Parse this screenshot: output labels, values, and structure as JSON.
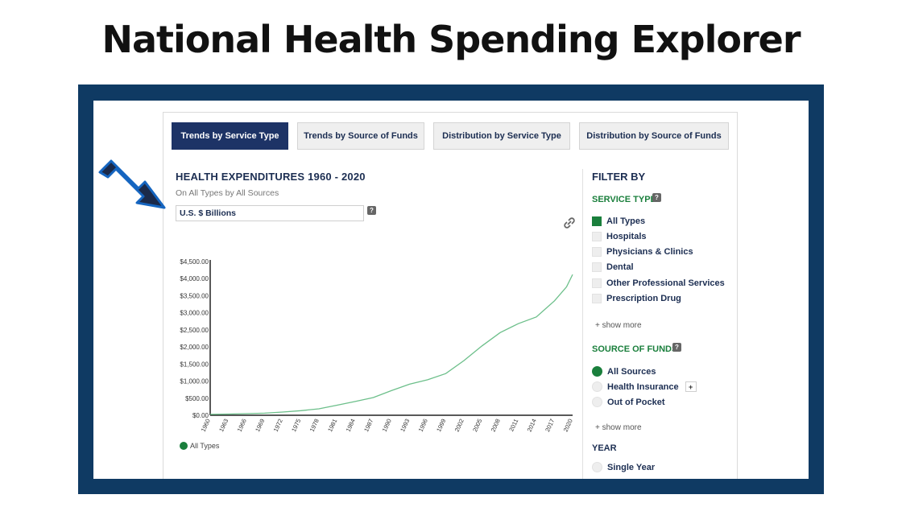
{
  "headline": "National Health Spending Explorer",
  "tabs": [
    {
      "label": "Trends by Service Type",
      "active": true
    },
    {
      "label": "Trends by Source of Funds",
      "active": false
    },
    {
      "label": "Distribution by Service Type",
      "active": false
    },
    {
      "label": "Distribution by Source of Funds",
      "active": false
    }
  ],
  "main": {
    "title": "HEALTH EXPENDITURES 1960 - 2020",
    "subtitle": "On All Types by All Sources",
    "units_value": "U.S. $ Billions",
    "help_label": "?"
  },
  "chart_data": {
    "type": "line",
    "title": "",
    "xlabel": "",
    "ylabel": "",
    "x_ticks": [
      "1960",
      "1963",
      "1966",
      "1969",
      "1972",
      "1975",
      "1978",
      "1981",
      "1984",
      "1987",
      "1990",
      "1993",
      "1996",
      "1999",
      "2002",
      "2005",
      "2008",
      "2011",
      "2014",
      "2017",
      "2020"
    ],
    "y_ticks": [
      "$0.00",
      "$500.00",
      "$1,000.00",
      "$1,500.00",
      "$2,000.00",
      "$2,500.00",
      "$3,000.00",
      "$3,500.00",
      "$4,000.00",
      "$4,500.00"
    ],
    "ylim": [
      0,
      4500
    ],
    "xlim": [
      1960,
      2020
    ],
    "legend_position": "bottom-left",
    "grid": false,
    "series": [
      {
        "name": "All Types",
        "color": "#1a7f3c",
        "line_color": "#6cbf8a",
        "x": [
          1960,
          1963,
          1966,
          1969,
          1972,
          1975,
          1978,
          1981,
          1984,
          1987,
          1990,
          1993,
          1996,
          1999,
          2002,
          2005,
          2008,
          2011,
          2014,
          2017,
          2019,
          2020
        ],
        "values": [
          27,
          35,
          46,
          62,
          94,
          134,
          189,
          294,
          404,
          519,
          721,
          910,
          1040,
          1220,
          1600,
          2030,
          2420,
          2680,
          2880,
          3350,
          3760,
          4120
        ]
      }
    ]
  },
  "filter": {
    "title": "FILTER BY",
    "service_type": {
      "heading": "SERVICE TYPE",
      "items": [
        {
          "label": "All Types",
          "checked": true
        },
        {
          "label": "Hospitals",
          "checked": false
        },
        {
          "label": "Physicians & Clinics",
          "checked": false
        },
        {
          "label": "Dental",
          "checked": false
        },
        {
          "label": "Other Professional Services",
          "checked": false
        },
        {
          "label": "Prescription Drug",
          "checked": false
        }
      ],
      "show_more": "+ show more"
    },
    "source_of_funds": {
      "heading": "SOURCE OF FUNDS",
      "items": [
        {
          "label": "All Sources",
          "checked": true
        },
        {
          "label": "Health Insurance",
          "checked": false,
          "expand": "+"
        },
        {
          "label": "Out of Pocket",
          "checked": false
        }
      ],
      "show_more": "+ show more"
    },
    "year": {
      "heading": "YEAR",
      "items": [
        {
          "label": "Single Year",
          "checked": false
        }
      ]
    }
  },
  "colors": {
    "frame": "#0f3a63",
    "navy": "#1d3366",
    "green": "#1a7f3c",
    "arrow": "#1565c0"
  }
}
